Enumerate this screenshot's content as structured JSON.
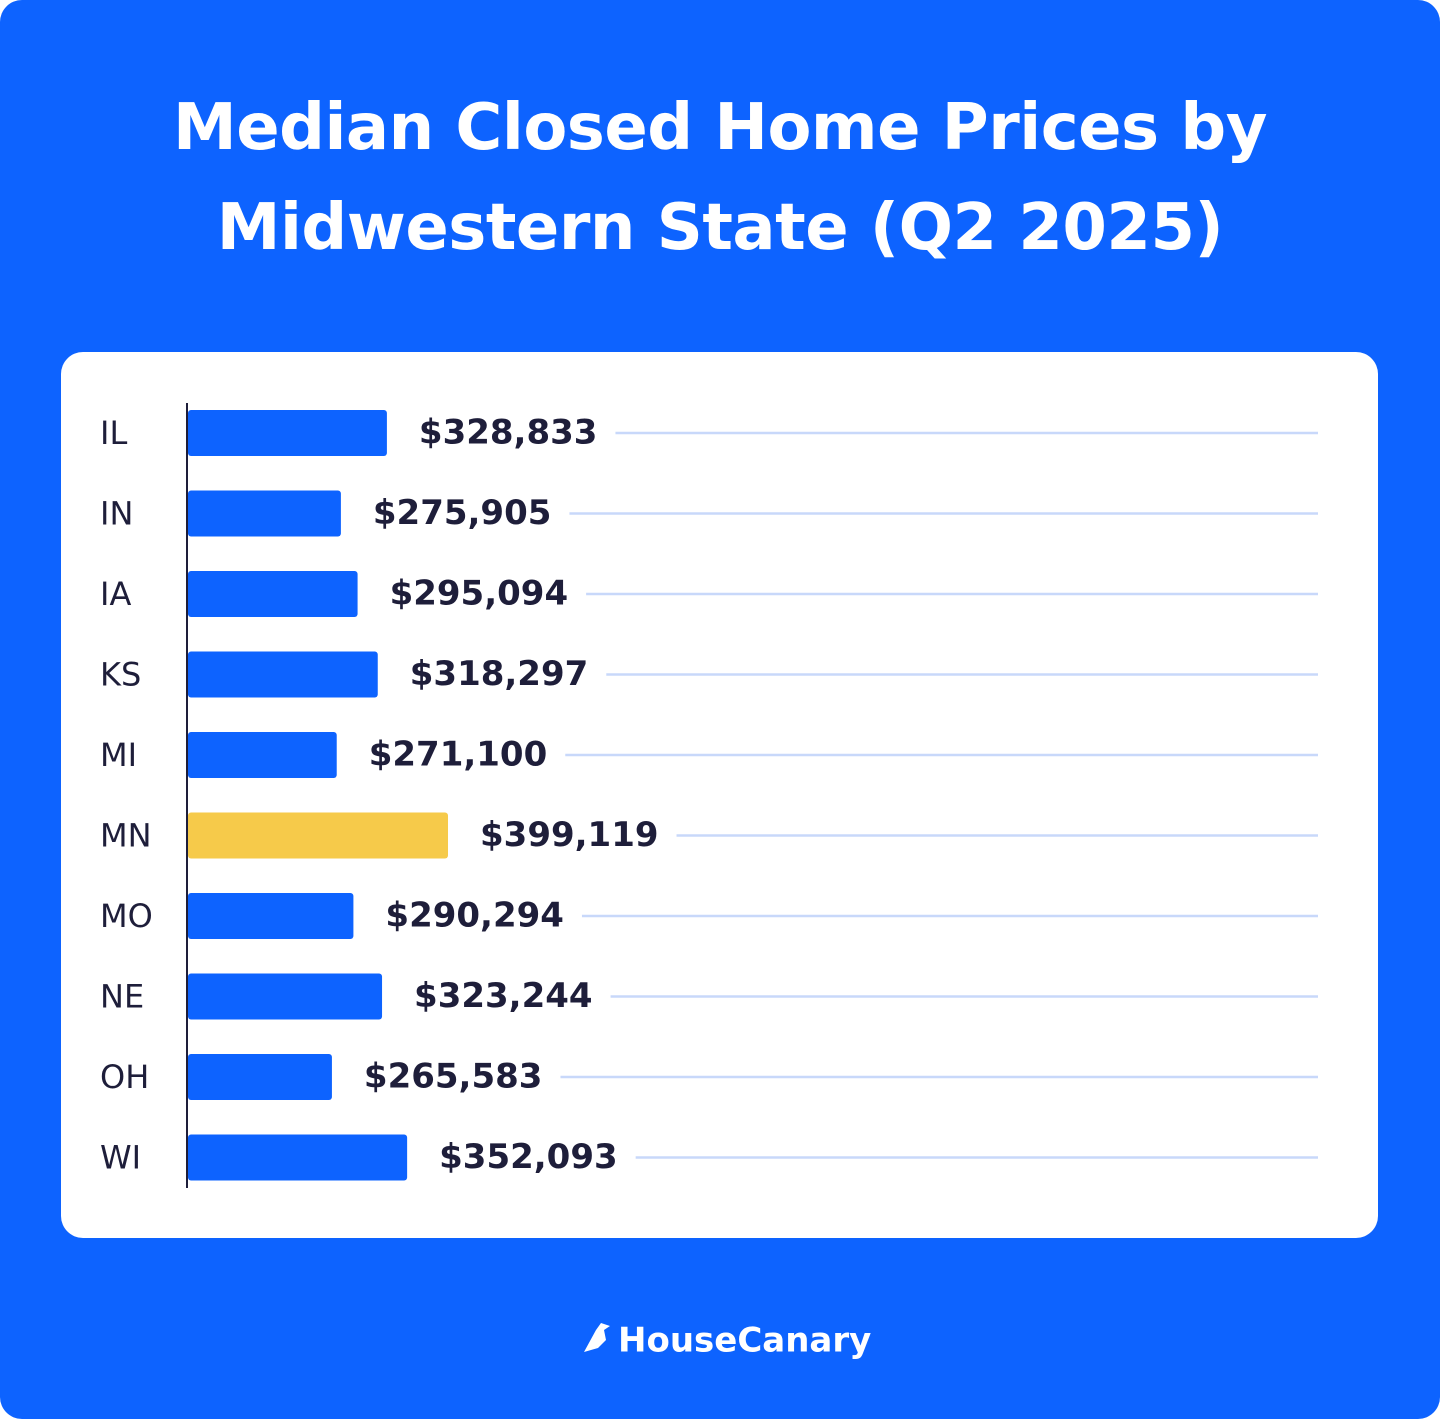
{
  "chart_data": {
    "type": "bar",
    "orientation": "horizontal",
    "title": "Median Closed Home Prices by Midwestern State (Q2 2025)",
    "categories": [
      "IL",
      "IN",
      "IA",
      "KS",
      "MI",
      "MN",
      "MO",
      "NE",
      "OH",
      "WI"
    ],
    "values": [
      328833,
      275905,
      295094,
      318297,
      271100,
      399119,
      290294,
      323244,
      265583,
      352093
    ],
    "value_labels": [
      "$328,833",
      "$275,905",
      "$295,094",
      "$318,297",
      "$271,100",
      "$399,119",
      "$290,294",
      "$323,244",
      "$265,583",
      "$352,093"
    ],
    "colors": [
      "#0d63ff",
      "#0d63ff",
      "#0d63ff",
      "#0d63ff",
      "#0d63ff",
      "#f6ca4a",
      "#0d63ff",
      "#0d63ff",
      "#0d63ff",
      "#0d63ff"
    ],
    "xlim": [
      100000,
      1400000
    ]
  },
  "brand": "HouseCanary"
}
